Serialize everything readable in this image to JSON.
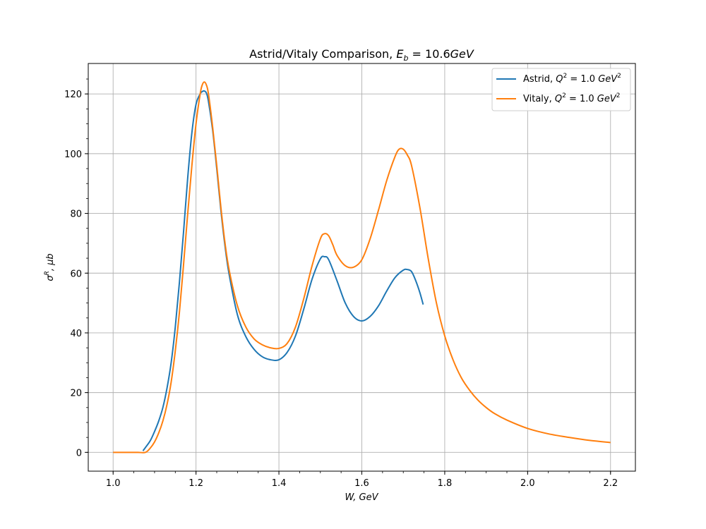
{
  "chart_data": {
    "type": "line",
    "title_text": "Astrid/Vitaly Comparison, ",
    "title_math": "E",
    "title_sub": "b",
    "title_value": " = 10.6",
    "title_unit": "GeV",
    "xlabel": "W, GeV",
    "ylabel_sigma": "σ",
    "ylabel_sup": "R",
    "ylabel_rest": ", μb",
    "xlim": [
      0.94,
      2.26
    ],
    "ylim": [
      -6.3,
      130.2
    ],
    "x_ticks": [
      1.0,
      1.2,
      1.4,
      1.6,
      1.8,
      2.0,
      2.2
    ],
    "x_tick_labels": [
      "1.0",
      "1.2",
      "1.4",
      "1.6",
      "1.8",
      "2.0",
      "2.2"
    ],
    "y_ticks": [
      0,
      20,
      40,
      60,
      80,
      100,
      120
    ],
    "y_tick_labels": [
      "0",
      "20",
      "40",
      "60",
      "80",
      "100",
      "120"
    ],
    "grid": true,
    "legend_position": "top-right",
    "series": [
      {
        "name": "Astrid, Q² = 1.0 GeV²",
        "legend_prefix": "Astrid, ",
        "color": "#1f77b4",
        "x": [
          1.072,
          1.08,
          1.09,
          1.1,
          1.11,
          1.12,
          1.13,
          1.14,
          1.15,
          1.16,
          1.17,
          1.18,
          1.19,
          1.2,
          1.21,
          1.215,
          1.22,
          1.225,
          1.23,
          1.24,
          1.25,
          1.26,
          1.27,
          1.28,
          1.3,
          1.32,
          1.34,
          1.36,
          1.38,
          1.4,
          1.42,
          1.44,
          1.46,
          1.48,
          1.5,
          1.51,
          1.52,
          1.54,
          1.56,
          1.58,
          1.6,
          1.62,
          1.64,
          1.66,
          1.68,
          1.7,
          1.71,
          1.72,
          1.73,
          1.74,
          1.748
        ],
        "y": [
          0.5,
          2.0,
          4.0,
          7.0,
          10.5,
          15.0,
          21.5,
          30.0,
          42.0,
          57.0,
          74.0,
          92.0,
          107.0,
          116.5,
          120.0,
          120.8,
          121.0,
          120.3,
          117.5,
          108.0,
          95.0,
          81.0,
          69.0,
          59.5,
          46.0,
          38.8,
          34.5,
          32.0,
          31.0,
          31.0,
          33.5,
          39.0,
          48.0,
          58.0,
          64.8,
          65.5,
          64.5,
          57.5,
          50.0,
          45.5,
          44.0,
          45.5,
          49.0,
          54.0,
          58.5,
          61.0,
          61.2,
          60.5,
          57.5,
          53.5,
          49.5
        ]
      },
      {
        "name": "Vitaly, Q² = 1.0 GeV²",
        "legend_prefix": "Vitaly, ",
        "color": "#ff7f0e",
        "x": [
          1.0,
          1.02,
          1.04,
          1.06,
          1.078,
          1.09,
          1.1,
          1.11,
          1.12,
          1.13,
          1.14,
          1.15,
          1.16,
          1.17,
          1.18,
          1.19,
          1.2,
          1.21,
          1.215,
          1.22,
          1.225,
          1.23,
          1.24,
          1.25,
          1.26,
          1.27,
          1.28,
          1.3,
          1.32,
          1.34,
          1.36,
          1.38,
          1.4,
          1.42,
          1.44,
          1.46,
          1.48,
          1.5,
          1.51,
          1.52,
          1.53,
          1.54,
          1.56,
          1.58,
          1.6,
          1.62,
          1.64,
          1.66,
          1.68,
          1.69,
          1.7,
          1.71,
          1.72,
          1.74,
          1.76,
          1.78,
          1.8,
          1.82,
          1.84,
          1.86,
          1.88,
          1.9,
          1.92,
          1.95,
          2.0,
          2.05,
          2.1,
          2.15,
          2.2
        ],
        "y": [
          0.0,
          0.0,
          0.0,
          0.0,
          0.0,
          1.5,
          3.5,
          6.5,
          10.5,
          16.0,
          23.5,
          34.0,
          47.0,
          63.0,
          80.0,
          96.0,
          110.0,
          120.0,
          123.0,
          124.0,
          123.0,
          120.0,
          109.0,
          96.0,
          82.0,
          70.0,
          61.0,
          49.0,
          42.0,
          38.0,
          36.0,
          35.0,
          34.8,
          36.5,
          42.0,
          51.5,
          62.5,
          71.5,
          73.2,
          72.5,
          69.5,
          66.0,
          62.5,
          62.0,
          64.5,
          71.5,
          81.0,
          91.0,
          99.0,
          101.5,
          101.5,
          99.5,
          96.0,
          82.0,
          65.0,
          50.0,
          39.0,
          31.0,
          25.0,
          20.8,
          17.5,
          15.0,
          13.0,
          10.8,
          8.0,
          6.2,
          5.0,
          4.0,
          3.3
        ]
      }
    ]
  }
}
